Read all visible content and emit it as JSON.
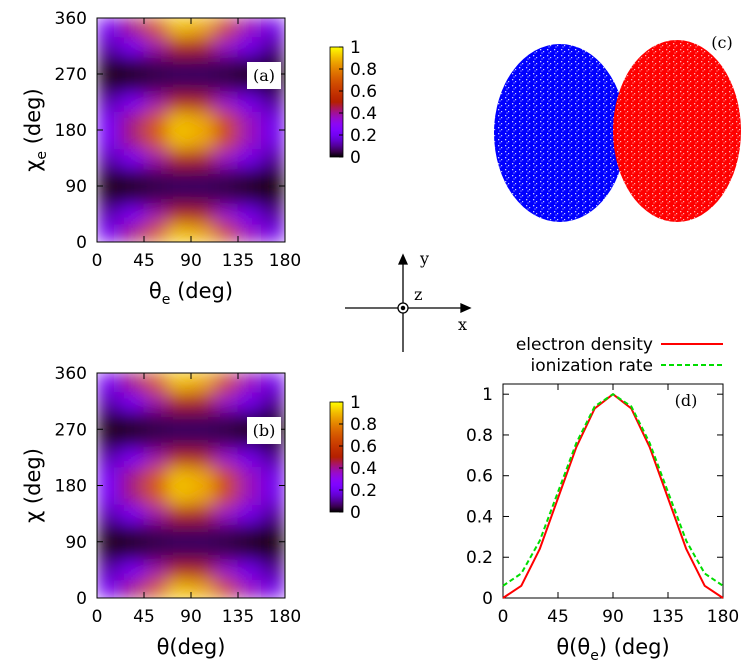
{
  "chart_data": [
    {
      "type": "heatmap",
      "label": "(a)",
      "xlabel": [
        "θ",
        "e",
        " (deg)"
      ],
      "ylabel": [
        "χ",
        "e",
        " (deg)"
      ],
      "xlim": [
        0,
        180
      ],
      "xticks": [
        0,
        45,
        90,
        135,
        180
      ],
      "ylim": [
        0,
        360
      ],
      "yticks": [
        0,
        90,
        180,
        270,
        360
      ],
      "x": [
        11.25,
        33.75,
        56.25,
        78.75,
        101.25,
        123.75,
        146.25,
        168.75
      ],
      "y": [
        15,
        45,
        75,
        105,
        135,
        165,
        195,
        225,
        255,
        285,
        315,
        345
      ],
      "z": [
        [
          0.21,
          0.42,
          0.7,
          0.91,
          0.87,
          0.65,
          0.37,
          0.19
        ],
        [
          0.12,
          0.23,
          0.38,
          0.49,
          0.47,
          0.35,
          0.2,
          0.1
        ],
        [
          0.02,
          0.03,
          0.05,
          0.06,
          0.06,
          0.05,
          0.03,
          0.01
        ],
        [
          0.02,
          0.03,
          0.05,
          0.06,
          0.06,
          0.05,
          0.03,
          0.01
        ],
        [
          0.12,
          0.23,
          0.38,
          0.49,
          0.47,
          0.35,
          0.2,
          0.1
        ],
        [
          0.21,
          0.42,
          0.7,
          0.91,
          0.87,
          0.65,
          0.37,
          0.19
        ],
        [
          0.21,
          0.42,
          0.7,
          0.91,
          0.87,
          0.65,
          0.37,
          0.19
        ],
        [
          0.12,
          0.23,
          0.38,
          0.49,
          0.47,
          0.35,
          0.2,
          0.1
        ],
        [
          0.02,
          0.03,
          0.05,
          0.06,
          0.06,
          0.05,
          0.03,
          0.01
        ],
        [
          0.02,
          0.03,
          0.05,
          0.06,
          0.06,
          0.05,
          0.03,
          0.01
        ],
        [
          0.12,
          0.23,
          0.38,
          0.49,
          0.47,
          0.35,
          0.2,
          0.1
        ],
        [
          0.21,
          0.42,
          0.7,
          0.91,
          0.87,
          0.65,
          0.37,
          0.19
        ]
      ],
      "zlim": [
        0,
        1
      ],
      "zticks": [
        0,
        0.2,
        0.4,
        0.6,
        0.8,
        1
      ],
      "colormap": "gnuplot"
    },
    {
      "type": "heatmap",
      "label": "(b)",
      "xlabel": [
        "θ(deg)"
      ],
      "ylabel": [
        "χ (deg)"
      ],
      "xlim": [
        0,
        180
      ],
      "xticks": [
        0,
        45,
        90,
        135,
        180
      ],
      "ylim": [
        0,
        360
      ],
      "yticks": [
        0,
        90,
        180,
        270,
        360
      ],
      "x": [
        11.25,
        33.75,
        56.25,
        78.75,
        101.25,
        123.75,
        146.25,
        168.75
      ],
      "y": [
        15,
        45,
        75,
        105,
        135,
        165,
        195,
        225,
        255,
        285,
        315,
        345
      ],
      "z": [
        [
          0.21,
          0.42,
          0.7,
          0.91,
          0.87,
          0.65,
          0.37,
          0.19
        ],
        [
          0.12,
          0.23,
          0.38,
          0.49,
          0.47,
          0.35,
          0.2,
          0.1
        ],
        [
          0.02,
          0.03,
          0.05,
          0.06,
          0.06,
          0.05,
          0.03,
          0.01
        ],
        [
          0.02,
          0.03,
          0.05,
          0.06,
          0.06,
          0.05,
          0.03,
          0.01
        ],
        [
          0.12,
          0.23,
          0.38,
          0.49,
          0.47,
          0.35,
          0.2,
          0.1
        ],
        [
          0.21,
          0.42,
          0.7,
          0.91,
          0.87,
          0.65,
          0.37,
          0.19
        ],
        [
          0.21,
          0.42,
          0.7,
          0.91,
          0.87,
          0.65,
          0.37,
          0.19
        ],
        [
          0.12,
          0.23,
          0.38,
          0.49,
          0.47,
          0.35,
          0.2,
          0.1
        ],
        [
          0.02,
          0.03,
          0.05,
          0.06,
          0.06,
          0.05,
          0.03,
          0.01
        ],
        [
          0.02,
          0.03,
          0.05,
          0.06,
          0.06,
          0.05,
          0.03,
          0.01
        ],
        [
          0.12,
          0.23,
          0.38,
          0.49,
          0.47,
          0.35,
          0.2,
          0.1
        ],
        [
          0.21,
          0.42,
          0.7,
          0.91,
          0.87,
          0.65,
          0.37,
          0.19
        ]
      ],
      "zlim": [
        0,
        1
      ],
      "zticks": [
        0,
        0.2,
        0.4,
        0.6,
        0.8,
        1
      ],
      "colormap": "gnuplot"
    },
    {
      "type": "line",
      "label": "(d)",
      "xlabel": [
        "θ(θ",
        "e",
        ") (deg)"
      ],
      "xlim": [
        0,
        180
      ],
      "xticks": [
        0,
        45,
        90,
        135,
        180
      ],
      "ylim": [
        0,
        1.05
      ],
      "yticks": [
        0,
        0.2,
        0.4,
        0.6,
        0.8,
        1
      ],
      "legend": "top",
      "x": [
        0,
        15,
        30,
        45,
        60,
        75,
        90,
        105,
        120,
        135,
        150,
        165,
        180
      ],
      "series": [
        {
          "name": "electron density",
          "color": "#ff0000",
          "style": "solid",
          "values": [
            0,
            0.06,
            0.24,
            0.49,
            0.74,
            0.93,
            1,
            0.93,
            0.74,
            0.49,
            0.24,
            0.06,
            0
          ]
        },
        {
          "name": "ionization rate",
          "color": "#00dd00",
          "style": "dashed",
          "values": [
            0.06,
            0.12,
            0.28,
            0.52,
            0.76,
            0.94,
            1,
            0.94,
            0.76,
            0.52,
            0.28,
            0.12,
            0.06
          ]
        }
      ]
    }
  ],
  "panel_c": {
    "label": "(c)"
  },
  "axes_diagram": {
    "x": "x",
    "y": "y",
    "z": "z"
  }
}
